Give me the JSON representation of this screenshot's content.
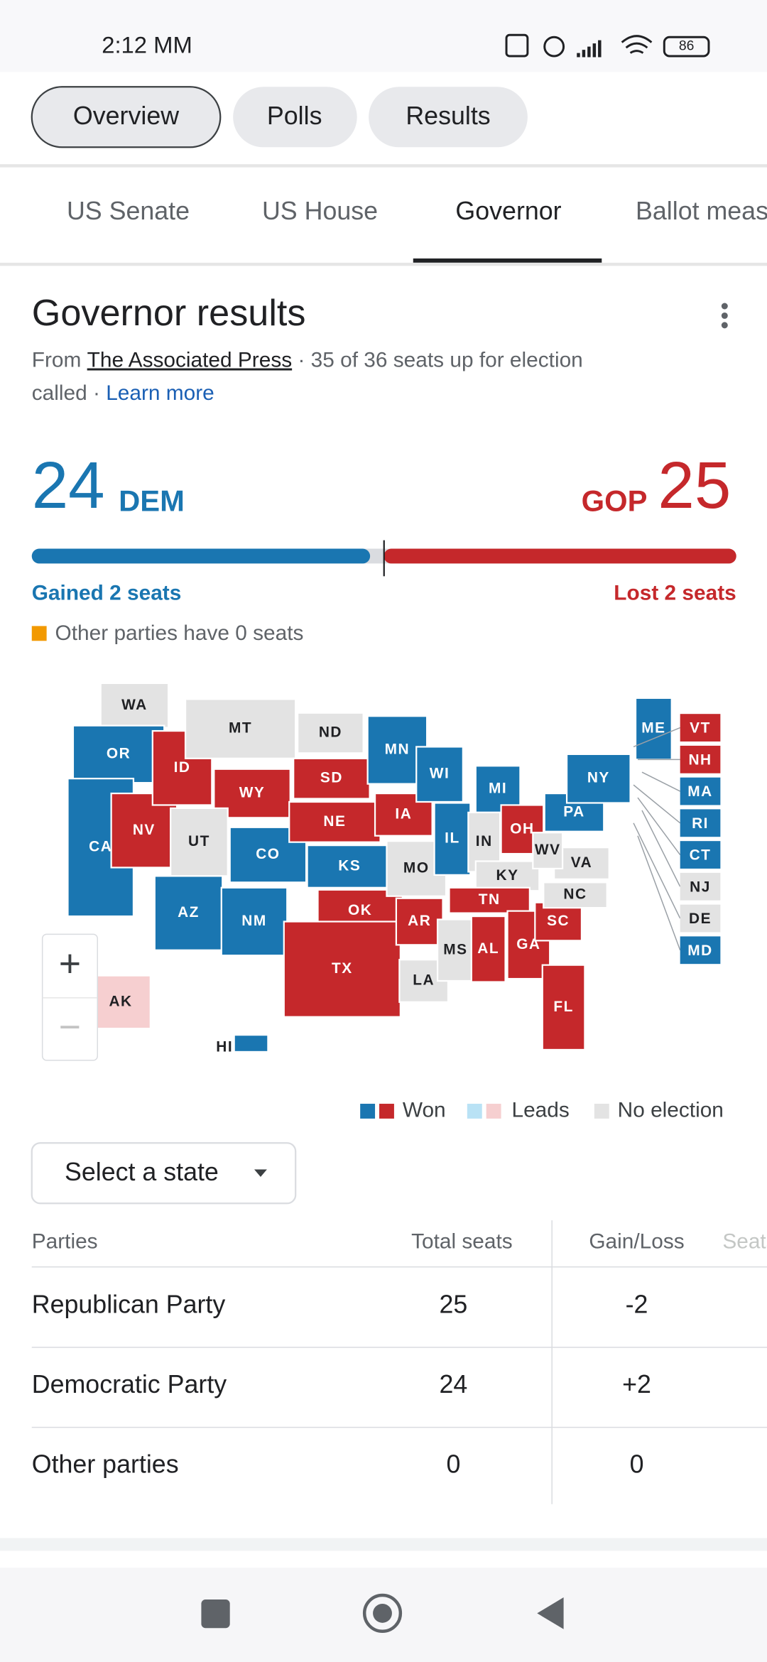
{
  "status_bar": {
    "time": "2:12 MM",
    "battery": "86"
  },
  "chips": [
    "Overview",
    "Polls",
    "Results"
  ],
  "tabs": [
    "US Senate",
    "US House",
    "Governor",
    "Ballot measures"
  ],
  "card": {
    "title": "Governor results",
    "source_prefix": "From ",
    "source": "The Associated Press",
    "source_suffix": " · 35 of 36 seats up for election",
    "source_line2": "called · ",
    "learn_more": "Learn more"
  },
  "summary": {
    "dem": {
      "seats": 24,
      "label": "DEM",
      "change": "Gained 2 seats",
      "color": "#1a76b1"
    },
    "gop": {
      "seats": 25,
      "label": "GOP",
      "change": "Lost 2 seats",
      "color": "#c5282b"
    },
    "other": {
      "text": "Other parties have 0 seats",
      "color": "#f29900"
    }
  },
  "map": {
    "zoom_in": "+",
    "zoom_out": "−",
    "states": [
      {
        "label": "WA",
        "color": "#e3e3e3"
      },
      {
        "label": "OR",
        "color": "#1a76b1"
      },
      {
        "label": "CA",
        "color": "#1a76b1"
      },
      {
        "label": "NV",
        "color": "#c5282b"
      },
      {
        "label": "ID",
        "color": "#c5282b"
      },
      {
        "label": "MT",
        "color": "#e3e3e3"
      },
      {
        "label": "WY",
        "color": "#c5282b"
      },
      {
        "label": "UT",
        "color": "#e3e3e3"
      },
      {
        "label": "AZ",
        "color": "#1a76b1"
      },
      {
        "label": "CO",
        "color": "#1a76b1"
      },
      {
        "label": "NM",
        "color": "#1a76b1"
      },
      {
        "label": "ND",
        "color": "#e3e3e3"
      },
      {
        "label": "SD",
        "color": "#c5282b"
      },
      {
        "label": "NE",
        "color": "#c5282b"
      },
      {
        "label": "KS",
        "color": "#1a76b1"
      },
      {
        "label": "OK",
        "color": "#c5282b"
      },
      {
        "label": "TX",
        "color": "#c5282b"
      },
      {
        "label": "MN",
        "color": "#1a76b1"
      },
      {
        "label": "IA",
        "color": "#c5282b"
      },
      {
        "label": "MO",
        "color": "#e3e3e3"
      },
      {
        "label": "AR",
        "color": "#c5282b"
      },
      {
        "label": "LA",
        "color": "#e3e3e3"
      },
      {
        "label": "WI",
        "color": "#1a76b1"
      },
      {
        "label": "IL",
        "color": "#1a76b1"
      },
      {
        "label": "MS",
        "color": "#e3e3e3"
      },
      {
        "label": "MI",
        "color": "#1a76b1"
      },
      {
        "label": "IN",
        "color": "#e3e3e3"
      },
      {
        "label": "KY",
        "color": "#e3e3e3"
      },
      {
        "label": "TN",
        "color": "#c5282b"
      },
      {
        "label": "AL",
        "color": "#c5282b"
      },
      {
        "label": "OH",
        "color": "#c5282b"
      },
      {
        "label": "GA",
        "color": "#c5282b"
      },
      {
        "label": "FL",
        "color": "#c5282b"
      },
      {
        "label": "SC",
        "color": "#c5282b"
      },
      {
        "label": "NC",
        "color": "#e3e3e3"
      },
      {
        "label": "VA",
        "color": "#e3e3e3"
      },
      {
        "label": "WV",
        "color": "#e3e3e3"
      },
      {
        "label": "PA",
        "color": "#1a76b1"
      },
      {
        "label": "NY",
        "color": "#1a76b1"
      },
      {
        "label": "ME",
        "color": "#1a76b1"
      },
      {
        "label": "AK",
        "color": "#f6cfd0"
      },
      {
        "label": "HI",
        "color": "#1a76b1"
      }
    ],
    "small_states": [
      {
        "label": "VT",
        "color": "#c5282b"
      },
      {
        "label": "NH",
        "color": "#c5282b"
      },
      {
        "label": "MA",
        "color": "#1a76b1"
      },
      {
        "label": "RI",
        "color": "#1a76b1"
      },
      {
        "label": "CT",
        "color": "#1a76b1"
      },
      {
        "label": "NJ",
        "color": "#e3e3e3"
      },
      {
        "label": "DE",
        "color": "#e3e3e3"
      },
      {
        "label": "MD",
        "color": "#1a76b1"
      }
    ]
  },
  "legend": {
    "won": "Won",
    "leads": "Leads",
    "no_election": "No election"
  },
  "select": "Select a state",
  "table": {
    "headers": [
      "Parties",
      "Total seats",
      "Gain/Loss",
      "Seats"
    ],
    "rows": [
      [
        "Republican Party",
        25,
        "-2"
      ],
      [
        "Democratic Party",
        24,
        "+2"
      ],
      [
        "Other parties",
        0,
        "0"
      ]
    ]
  }
}
